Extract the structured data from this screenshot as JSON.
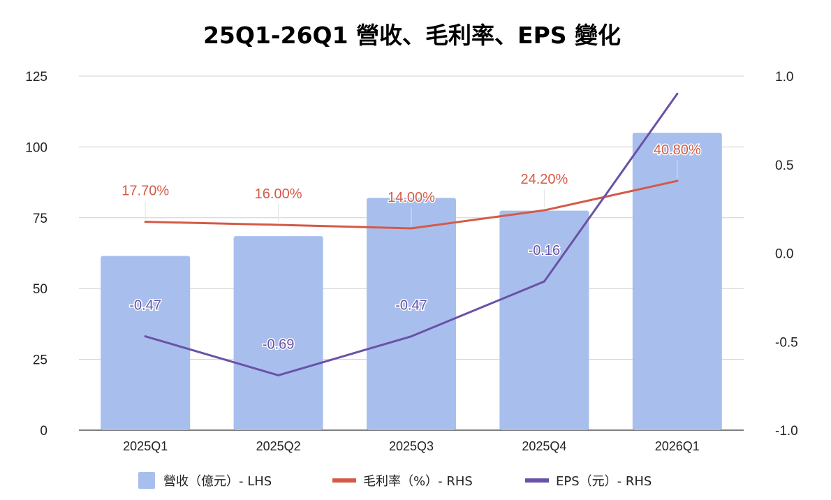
{
  "chart_data": {
    "type": "combo-bar-line",
    "title": "25Q1-26Q1 營收、毛利率、EPS 變化",
    "categories": [
      "2025Q1",
      "2025Q2",
      "2025Q3",
      "2025Q4",
      "2026Q1"
    ],
    "left_axis": {
      "min": 0,
      "max": 125,
      "ticks": [
        "0",
        "25",
        "50",
        "75",
        "100",
        "125"
      ]
    },
    "right_axis": {
      "min": -1.0,
      "max": 1.0,
      "ticks": [
        "-1.0",
        "-0.5",
        "0.0",
        "0.5",
        "1.0"
      ]
    },
    "grid": true,
    "legend_position": "bottom",
    "series": [
      {
        "name": "營收（億元）- LHS",
        "type": "bar",
        "axis": "left",
        "color": "#a8bfee",
        "values": [
          61.5,
          68.5,
          82,
          77.5,
          105
        ]
      },
      {
        "name": "毛利率（%）- RHS",
        "type": "line",
        "axis": "right",
        "color": "#d45a47",
        "values": [
          0.177,
          0.16,
          0.14,
          0.242,
          0.408
        ],
        "labels": [
          "17.70%",
          "16.00%",
          "14.00%",
          "24.20%",
          "40.80%"
        ]
      },
      {
        "name": "EPS（元）- RHS",
        "type": "line",
        "axis": "right",
        "color": "#6a52a6",
        "values": [
          -0.47,
          -0.69,
          -0.47,
          -0.16,
          0.9
        ],
        "labels": [
          "-0.47",
          "-0.69",
          "-0.47",
          "-0.16",
          ""
        ]
      }
    ]
  }
}
